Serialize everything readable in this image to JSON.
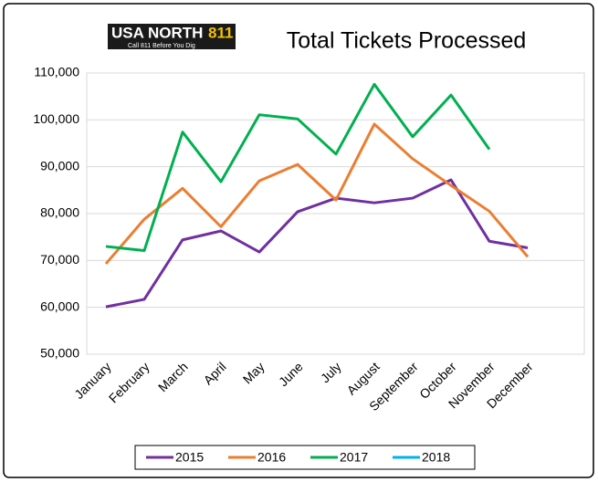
{
  "logo": {
    "parts": [
      "USA",
      "NORTH",
      "811"
    ],
    "tagline": "Call 811 Before You Dig"
  },
  "chart_data": {
    "type": "line",
    "title": "Total Tickets Processed",
    "categories": [
      "January",
      "February",
      "March",
      "April",
      "May",
      "June",
      "July",
      "August",
      "September",
      "October",
      "November",
      "December"
    ],
    "series": [
      {
        "name": "2015",
        "color": "#7030a0",
        "values": [
          60100,
          61700,
          74400,
          76300,
          71800,
          80400,
          83300,
          82300,
          83300,
          87200,
          74100,
          72700
        ]
      },
      {
        "name": "2016",
        "color": "#ed7d31",
        "values": [
          69300,
          78800,
          85400,
          77200,
          87000,
          90500,
          82900,
          99100,
          91700,
          86000,
          80500,
          70800
        ]
      },
      {
        "name": "2017",
        "color": "#00b050",
        "values": [
          73000,
          72100,
          97400,
          86800,
          101100,
          100200,
          92700,
          107600,
          96400,
          105300,
          93700,
          null
        ]
      },
      {
        "name": "2018",
        "color": "#00b0f0",
        "values": [
          null,
          null,
          null,
          null,
          null,
          null,
          null,
          null,
          null,
          null,
          null,
          null
        ]
      }
    ],
    "ylim": [
      50000,
      110000
    ],
    "yticks": [
      {
        "value": 50000,
        "label": "50,000"
      },
      {
        "value": 60000,
        "label": "60,000"
      },
      {
        "value": 70000,
        "label": "70,000"
      },
      {
        "value": 80000,
        "label": "80,000"
      },
      {
        "value": 90000,
        "label": "90,000"
      },
      {
        "value": 100000,
        "label": "100,000"
      },
      {
        "value": 110000,
        "label": "110,000"
      }
    ],
    "grid": true,
    "legend": "bottom"
  }
}
